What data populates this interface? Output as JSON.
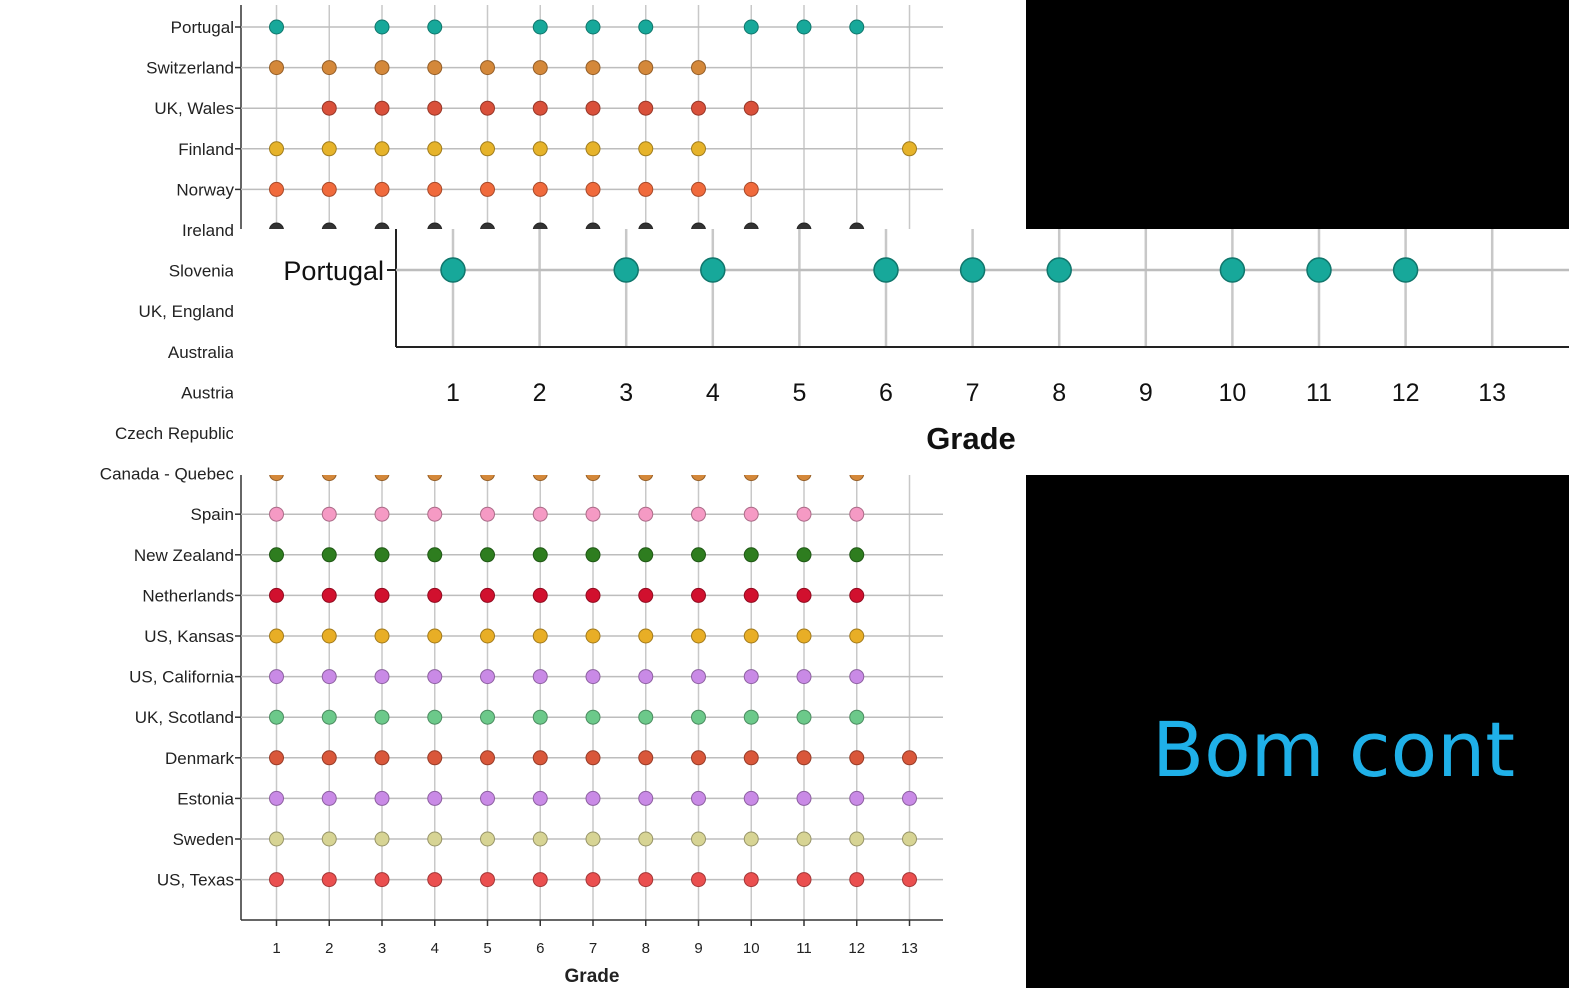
{
  "chart_data": [
    {
      "type": "scatter",
      "xlabel": "Grade",
      "x": [
        1,
        2,
        3,
        4,
        5,
        6,
        7,
        8,
        9,
        10,
        11,
        12,
        13
      ],
      "rows": [
        {
          "label": "Portugal",
          "color": "#17a89a",
          "grades": [
            1,
            3,
            4,
            6,
            7,
            8,
            10,
            11,
            12
          ]
        },
        {
          "label": "Switzerland",
          "color": "#d4883a",
          "grades": [
            1,
            2,
            3,
            4,
            5,
            6,
            7,
            8,
            9
          ]
        },
        {
          "label": "UK, Wales",
          "color": "#d9503a",
          "grades": [
            2,
            3,
            4,
            5,
            6,
            7,
            8,
            9,
            10
          ]
        },
        {
          "label": "Finland",
          "color": "#e6b32a",
          "grades": [
            1,
            2,
            3,
            4,
            5,
            6,
            7,
            8,
            9,
            13
          ]
        },
        {
          "label": "Norway",
          "color": "#f06a3c",
          "grades": [
            1,
            2,
            3,
            4,
            5,
            6,
            7,
            8,
            9,
            10
          ]
        },
        {
          "label": "Ireland",
          "color": "#333333",
          "grades": [
            1,
            2,
            3,
            4,
            5,
            6,
            7,
            8,
            9,
            10,
            11,
            12
          ]
        },
        {
          "label": "Slovenia",
          "color": "#cccccc",
          "grades": []
        },
        {
          "label": "UK, England",
          "color": "#cccccc",
          "grades": []
        },
        {
          "label": "Australia",
          "color": "#cccccc",
          "grades": []
        },
        {
          "label": "Austria",
          "color": "#cccccc",
          "grades": []
        },
        {
          "label": "Czech Republic",
          "color": "#cccccc",
          "grades": []
        },
        {
          "label": "Canada - Quebec",
          "color": "#d4883a",
          "grades": [
            1,
            2,
            3,
            4,
            5,
            6,
            7,
            8,
            9,
            10,
            11,
            12
          ]
        },
        {
          "label": "Spain",
          "color": "#f59ac4",
          "grades": [
            1,
            2,
            3,
            4,
            5,
            6,
            7,
            8,
            9,
            10,
            11,
            12
          ]
        },
        {
          "label": "New Zealand",
          "color": "#2e7d1f",
          "grades": [
            1,
            2,
            3,
            4,
            5,
            6,
            7,
            8,
            9,
            10,
            11,
            12
          ]
        },
        {
          "label": "Netherlands",
          "color": "#d1102e",
          "grades": [
            1,
            2,
            3,
            4,
            5,
            6,
            7,
            8,
            9,
            10,
            11,
            12
          ]
        },
        {
          "label": "US, Kansas",
          "color": "#e8ae26",
          "grades": [
            1,
            2,
            3,
            4,
            5,
            6,
            7,
            8,
            9,
            10,
            11,
            12
          ]
        },
        {
          "label": "US, California",
          "color": "#c98ae6",
          "grades": [
            1,
            2,
            3,
            4,
            5,
            6,
            7,
            8,
            9,
            10,
            11,
            12
          ]
        },
        {
          "label": "UK, Scotland",
          "color": "#6cc98a",
          "grades": [
            1,
            2,
            3,
            4,
            5,
            6,
            7,
            8,
            9,
            10,
            11,
            12
          ]
        },
        {
          "label": "Denmark",
          "color": "#d9573a",
          "grades": [
            1,
            2,
            3,
            4,
            5,
            6,
            7,
            8,
            9,
            10,
            11,
            12,
            13
          ]
        },
        {
          "label": "Estonia",
          "color": "#c98ae6",
          "grades": [
            1,
            2,
            3,
            4,
            5,
            6,
            7,
            8,
            9,
            10,
            11,
            12,
            13
          ]
        },
        {
          "label": "Sweden",
          "color": "#d7d494",
          "grades": [
            1,
            2,
            3,
            4,
            5,
            6,
            7,
            8,
            9,
            10,
            11,
            12,
            13
          ]
        },
        {
          "label": "US, Texas",
          "color": "#ea4f4f",
          "grades": [
            1,
            2,
            3,
            4,
            5,
            6,
            7,
            8,
            9,
            10,
            11,
            12,
            13
          ]
        }
      ]
    },
    {
      "type": "scatter",
      "xlabel": "Grade",
      "x": [
        1,
        2,
        3,
        4,
        5,
        6,
        7,
        8,
        9,
        10,
        11,
        12,
        13
      ],
      "rows": [
        {
          "label": "Portugal",
          "color": "#17a89a",
          "grades": [
            1,
            3,
            4,
            6,
            7,
            8,
            10,
            11,
            12
          ]
        }
      ]
    }
  ],
  "caption": "Bom cont"
}
